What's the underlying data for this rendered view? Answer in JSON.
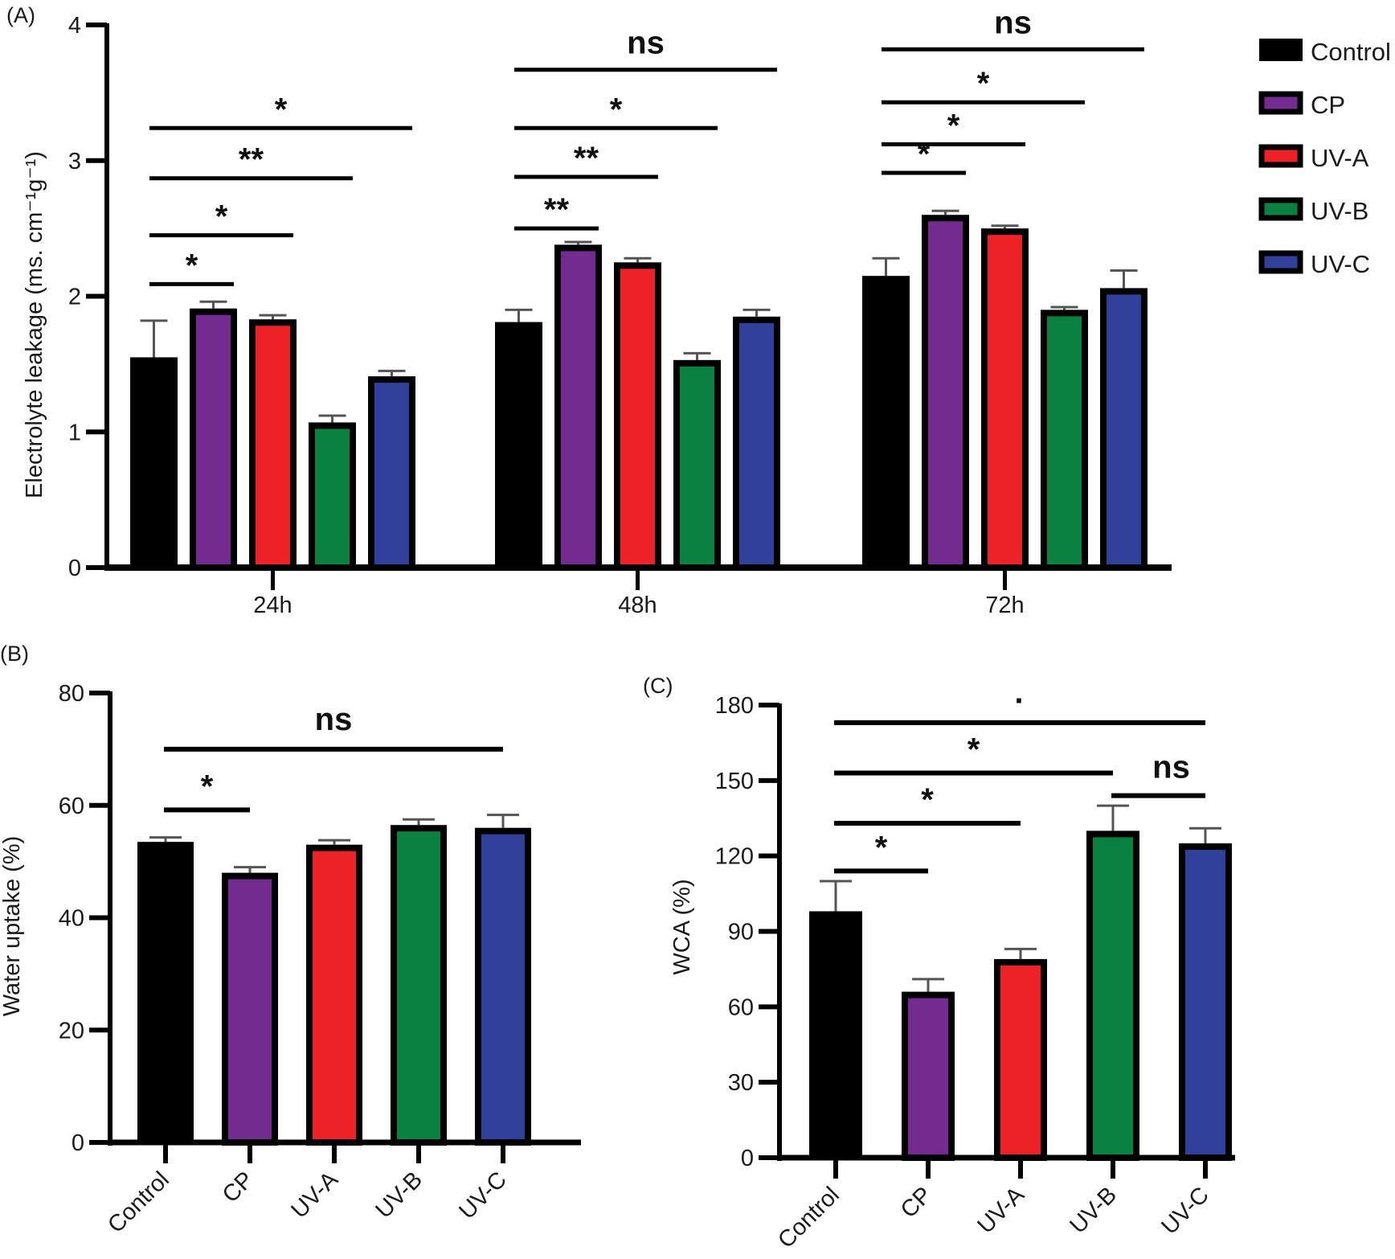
{
  "figure": {
    "colors": {
      "Control": "#000000",
      "CP": "#732b8f",
      "UV-A": "#ec2227",
      "UV-B": "#0b8140",
      "UV-C": "#31419a"
    }
  },
  "chart_data": [
    {
      "panel": "(A)",
      "type": "bar",
      "title": "",
      "xlabel": "",
      "ylabel": "Electrolyte leakage (ms. cm⁻¹g⁻¹)",
      "ylim": [
        0,
        4
      ],
      "yticks": [
        "0",
        "1",
        "2",
        "3",
        "4"
      ],
      "categories": [
        "24h",
        "48h",
        "72h"
      ],
      "legend": {
        "position": "top-right",
        "entries": [
          "Control",
          "CP",
          "UV-A",
          "UV-B",
          "UV-C"
        ]
      },
      "series": [
        {
          "name": "Control",
          "values": [
            1.55,
            1.81,
            2.15
          ],
          "errors": [
            0.27,
            0.09,
            0.13
          ]
        },
        {
          "name": "CP",
          "values": [
            1.91,
            2.38,
            2.6
          ],
          "errors": [
            0.05,
            0.02,
            0.03
          ]
        },
        {
          "name": "UV-A",
          "values": [
            1.83,
            2.25,
            2.5
          ],
          "errors": [
            0.03,
            0.03,
            0.02
          ]
        },
        {
          "name": "UV-B",
          "values": [
            1.07,
            1.53,
            1.9
          ],
          "errors": [
            0.05,
            0.05,
            0.02
          ]
        },
        {
          "name": "UV-C",
          "values": [
            1.41,
            1.85,
            2.06
          ],
          "errors": [
            0.04,
            0.05,
            0.13
          ]
        }
      ],
      "significance": [
        {
          "group": "24h",
          "from": "Control",
          "to": "CP",
          "label": "*",
          "level": 2.09
        },
        {
          "group": "24h",
          "from": "Control",
          "to": "UV-A",
          "label": "*",
          "level": 2.45
        },
        {
          "group": "24h",
          "from": "Control",
          "to": "UV-B",
          "label": "**",
          "level": 2.87
        },
        {
          "group": "24h",
          "from": "Control",
          "to": "UV-C",
          "label": "*",
          "level": 3.24
        },
        {
          "group": "48h",
          "from": "Control",
          "to": "CP",
          "label": "**",
          "level": 2.5
        },
        {
          "group": "48h",
          "from": "Control",
          "to": "UV-A",
          "label": "**",
          "level": 2.88
        },
        {
          "group": "48h",
          "from": "Control",
          "to": "UV-B",
          "label": "*",
          "level": 3.24
        },
        {
          "group": "48h",
          "from": "Control",
          "to": "UV-C",
          "label": "ns",
          "level": 3.67
        },
        {
          "group": "72h",
          "from": "Control",
          "to": "CP",
          "label": "*",
          "level": 2.91
        },
        {
          "group": "72h",
          "from": "Control",
          "to": "UV-A",
          "label": "*",
          "level": 3.12
        },
        {
          "group": "72h",
          "from": "Control",
          "to": "UV-B",
          "label": "*",
          "level": 3.43
        },
        {
          "group": "72h",
          "from": "Control",
          "to": "UV-C",
          "label": "ns",
          "level": 3.82
        }
      ]
    },
    {
      "panel": "(B)",
      "type": "bar",
      "title": "",
      "xlabel": "",
      "ylabel": "Water uptake (%)",
      "ylim": [
        0,
        80
      ],
      "yticks": [
        "0",
        "20",
        "40",
        "60",
        "80"
      ],
      "categories": [
        "Control",
        "CP",
        "UV-A",
        "UV-B",
        "UV-C"
      ],
      "values": [
        53.5,
        48.0,
        53.0,
        56.5,
        56.0
      ],
      "errors": [
        0.8,
        1.0,
        0.8,
        1.0,
        2.3
      ],
      "significance": [
        {
          "from": "Control",
          "to": "CP",
          "label": "*",
          "level": 59.2
        },
        {
          "from": "Control",
          "to": "UV-C",
          "label": "ns",
          "level": 70
        }
      ]
    },
    {
      "panel": "(C)",
      "type": "bar",
      "title": "",
      "xlabel": "",
      "ylabel": "WCA (%)",
      "ylim": [
        0,
        180
      ],
      "yticks": [
        "0",
        "30",
        "60",
        "90",
        "120",
        "150",
        "180"
      ],
      "categories": [
        "Control",
        "CP",
        "UV-A",
        "UV-B",
        "UV-C"
      ],
      "values": [
        98,
        66,
        79,
        130,
        125
      ],
      "errors": [
        12,
        5,
        4,
        10,
        6
      ],
      "significance": [
        {
          "from": "Control",
          "to": "CP",
          "label": "*",
          "level": 114
        },
        {
          "from": "Control",
          "to": "UV-A",
          "label": "*",
          "level": 133
        },
        {
          "from": "Control",
          "to": "UV-B",
          "label": "*",
          "level": 153
        },
        {
          "from": "Control",
          "to": "UV-C",
          "label": "·",
          "level": 173
        },
        {
          "from": "UV-B",
          "to": "UV-C",
          "label": "ns",
          "level": 144
        }
      ]
    }
  ]
}
